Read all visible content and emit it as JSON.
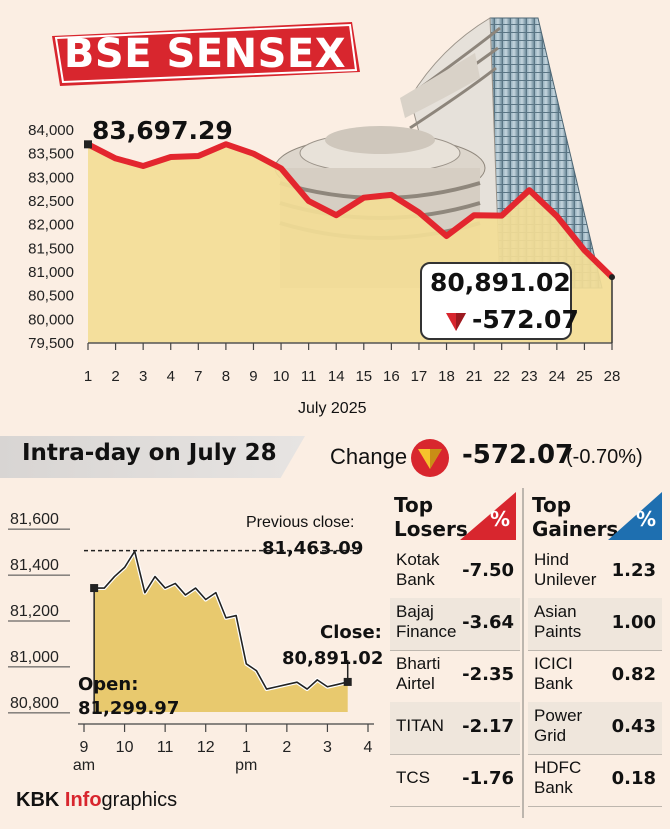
{
  "header": {
    "title": "BSE SENSEX",
    "colors": {
      "banner": "#d8262e",
      "line": "#e3262e",
      "area": "#f3dd96",
      "accent_blue": "#1e6fb0"
    }
  },
  "chart_data": [
    {
      "type": "area",
      "title": "BSE SENSEX",
      "xlabel": "July 2025",
      "ylabel": "",
      "categories": [
        "1",
        "2",
        "3",
        "4",
        "7",
        "8",
        "9",
        "10",
        "11",
        "14",
        "15",
        "16",
        "17",
        "18",
        "21",
        "22",
        "23",
        "24",
        "25",
        "28"
      ],
      "values": [
        83697.29,
        83400,
        83240,
        83430,
        83450,
        83700,
        83500,
        83190,
        82500,
        82200,
        82570,
        82630,
        82260,
        81760,
        82200,
        82190,
        82730,
        82180,
        81460,
        80891.02
      ],
      "yticks": [
        84000,
        83500,
        83000,
        82500,
        82000,
        81500,
        81000,
        80500,
        80000,
        79500
      ],
      "ylim": [
        79500,
        84000
      ],
      "grid": false,
      "annotations": {
        "first_value": "83,697.29",
        "last_value": "80,891.02",
        "last_change": "-572.07"
      }
    },
    {
      "type": "area",
      "title": "Intra-day on July 28",
      "xlabel": "",
      "ylabel": "",
      "x_ticks": [
        "9",
        "10",
        "11",
        "12",
        "1",
        "2",
        "3",
        "4"
      ],
      "x_sublabels": {
        "9": "am",
        "1": "pm"
      },
      "x_hours": [
        9.25,
        9.5,
        9.75,
        10,
        10.25,
        10.5,
        10.75,
        11,
        11.25,
        11.5,
        11.75,
        12,
        12.25,
        12.5,
        12.75,
        13,
        13.25,
        13.5,
        13.75,
        14,
        14.25,
        14.5,
        14.75,
        15,
        15.25,
        15.5
      ],
      "values": [
        81299.97,
        81300,
        81350,
        81390,
        81460,
        81280,
        81350,
        81300,
        81320,
        81270,
        81300,
        81250,
        81280,
        81170,
        81180,
        80970,
        80940,
        80860,
        80870,
        80880,
        80890,
        80860,
        80900,
        80870,
        80880,
        80891.02
      ],
      "yticks": [
        81600,
        81400,
        81200,
        81000,
        80800
      ],
      "ylim": [
        80760,
        81640
      ],
      "reference_line": {
        "label": "Previous close:",
        "value": 81463.09,
        "display": "81,463.09"
      },
      "open": {
        "label": "Open:",
        "display": "81,299.97"
      },
      "close": {
        "label": "Close:",
        "display": "80,891.02"
      }
    }
  ],
  "intraday": {
    "title": "Intra-day on July 28",
    "change_label": "Change",
    "change_value": "-572.07",
    "change_pct": "(-0.70%)"
  },
  "losers": {
    "title_line1": "Top",
    "title_line2": "Losers",
    "badge": "%",
    "rows": [
      {
        "name1": "Kotak",
        "name2": "Bank",
        "value": "-7.50"
      },
      {
        "name1": "Bajaj",
        "name2": "Finance",
        "value": "-3.64"
      },
      {
        "name1": "Bharti",
        "name2": "Airtel",
        "value": "-2.35"
      },
      {
        "name1": "TITAN",
        "name2": "",
        "value": "-2.17"
      },
      {
        "name1": "TCS",
        "name2": "",
        "value": "-1.76"
      }
    ]
  },
  "gainers": {
    "title_line1": "Top",
    "title_line2": "Gainers",
    "badge": "%",
    "rows": [
      {
        "name1": "Hind",
        "name2": "Unilever",
        "value": "1.23"
      },
      {
        "name1": "Asian",
        "name2": "Paints",
        "value": "1.00"
      },
      {
        "name1": "ICICI",
        "name2": "Bank",
        "value": "0.82"
      },
      {
        "name1": "Power",
        "name2": "Grid",
        "value": "0.43"
      },
      {
        "name1": "HDFC",
        "name2": "Bank",
        "value": "0.18"
      }
    ]
  },
  "credit": {
    "part1": "KBK ",
    "part2": "Info",
    "part3": "graphics"
  }
}
